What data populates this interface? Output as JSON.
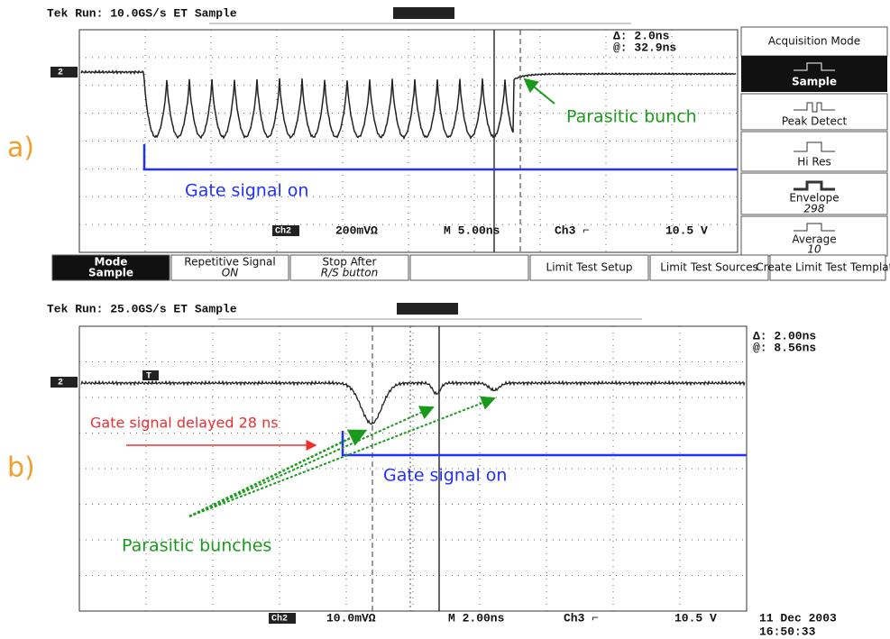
{
  "panel_a": {
    "label": "a)",
    "header": "Tek Run: 10.0GS/s ET Sample",
    "delta": "Δ: 2.0ns",
    "at": "@: 32.9ns",
    "channel_marker": "2",
    "annotations": {
      "parasitic": "Parasitic bunch",
      "gate": "Gate signal on"
    },
    "status": {
      "channel": "Ch2",
      "scale": "200mVΩ",
      "time": "M 5.00ns",
      "trigger": "Ch3 ⌐",
      "level": "10.5 V"
    },
    "side_menu": {
      "title": "Acquisition Mode",
      "sample": "Sample",
      "peak": "Peak Detect",
      "hires": "Hi Res",
      "envelope": "Envelope",
      "envelope_count": "298",
      "average": "Average",
      "average_count": "10"
    },
    "bottom_menu": [
      [
        "Mode",
        "Sample"
      ],
      [
        "Repetitive Signal",
        "ON"
      ],
      [
        "Stop After",
        "R/S button"
      ],
      [
        "Limit Test Setup"
      ],
      [
        "Limit Test Sources"
      ],
      [
        "Create Limit Test Template"
      ]
    ]
  },
  "panel_b": {
    "label": "b)",
    "header": "Tek Run: 25.0GS/s ET Sample",
    "delta": "Δ: 2.00ns",
    "at": "@: 8.56ns",
    "channel_marker": "2",
    "trigger_marker": "T",
    "annotations": {
      "delayed": "Gate signal delayed 28 ns",
      "gate": "Gate signal on",
      "parasitic": "Parasitic bunches"
    },
    "status": {
      "channel": "Ch2",
      "scale": "10.0mVΩ",
      "time": "M 2.00ns",
      "trigger": "Ch3 ⌐",
      "level": "10.5 V"
    },
    "date": "11 Dec 2003",
    "time": "16:50:33"
  }
}
